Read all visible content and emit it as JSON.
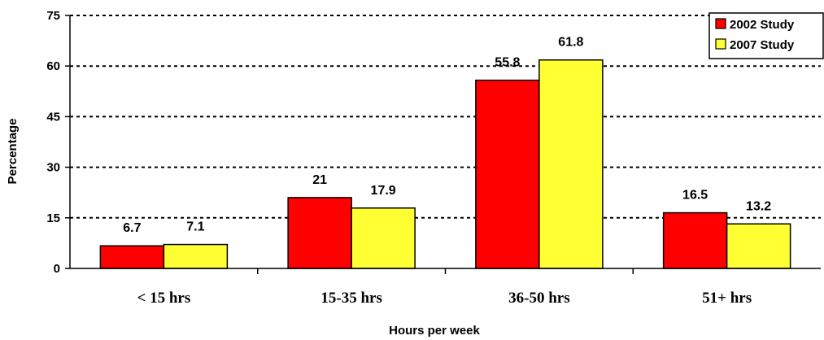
{
  "chart_data": {
    "type": "bar",
    "title": "",
    "xlabel": "Hours per week",
    "ylabel": "Percentage",
    "categories": [
      "< 15 hrs",
      "15-35 hrs",
      "36-50 hrs",
      "51+ hrs"
    ],
    "series": [
      {
        "name": "2002 Study",
        "color": "#ff0000",
        "values": [
          6.7,
          21,
          55.8,
          16.5
        ]
      },
      {
        "name": "2007 Study",
        "color": "#ffff33",
        "values": [
          7.1,
          17.9,
          61.8,
          13.2
        ]
      }
    ],
    "ylim": [
      0,
      75
    ],
    "yticks": [
      0,
      15,
      30,
      45,
      60,
      75
    ],
    "grid": true,
    "legend_position": "top-right"
  }
}
